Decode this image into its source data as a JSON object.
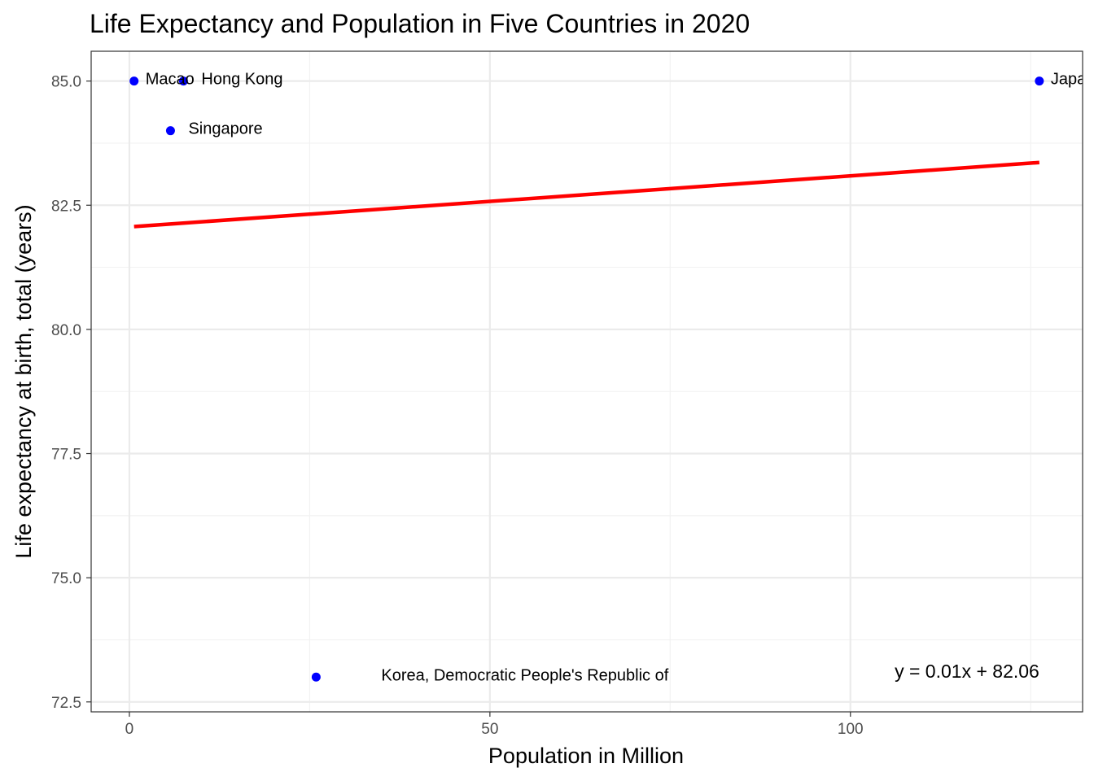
{
  "chart_data": {
    "type": "scatter",
    "title": "Life Expectancy and Population in Five Countries in 2020",
    "xlabel": "Population in Million",
    "ylabel": "Life expectancy at birth, total (years)",
    "xlim": [
      -5.3,
      132.2
    ],
    "ylim": [
      72.3,
      85.6
    ],
    "x_ticks": [
      0,
      50,
      100
    ],
    "y_ticks": [
      72.5,
      75.0,
      77.5,
      80.0,
      82.5,
      85.0
    ],
    "x_tick_labels": [
      "0",
      "50",
      "100"
    ],
    "y_tick_labels": [
      "72.5",
      "75.0",
      "77.5",
      "80.0",
      "82.5",
      "85.0"
    ],
    "x_minor_ticks": [
      25,
      75,
      125
    ],
    "y_minor_ticks": [
      73.75,
      76.25,
      78.75,
      81.25,
      83.75
    ],
    "grid": true,
    "point_color": "#0000ff",
    "points": [
      {
        "label": "Macao",
        "x": 0.65,
        "y": 85
      },
      {
        "label": "Hong Kong",
        "x": 7.5,
        "y": 85
      },
      {
        "label": "Singapore",
        "x": 5.7,
        "y": 84
      },
      {
        "label": "Korea, Democratic People's Republic of",
        "x": 25.9,
        "y": 73
      },
      {
        "label": "Japan",
        "x": 126.2,
        "y": 85
      }
    ],
    "trendline": {
      "color": "#ff0000",
      "slope": 0.01,
      "intercept": 82.06,
      "x_range": [
        0.65,
        126.2
      ],
      "y_range": [
        82.07,
        83.36
      ],
      "equation": "y = 0.01x + 82.06"
    }
  }
}
